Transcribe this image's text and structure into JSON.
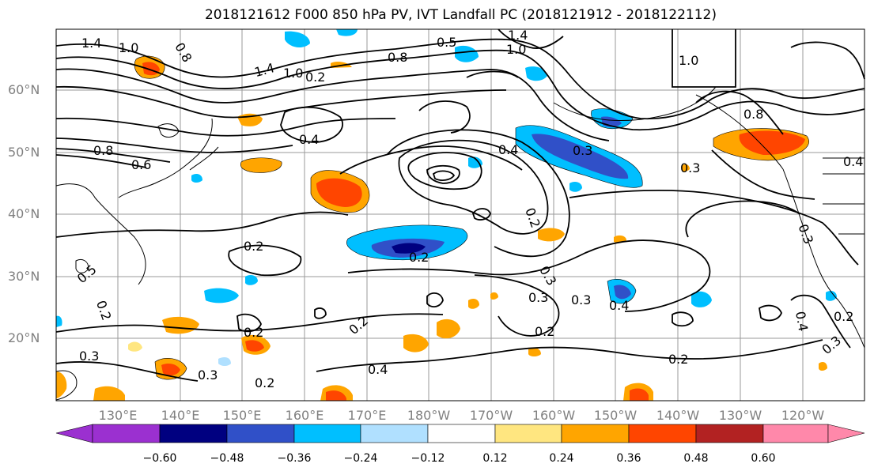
{
  "title": "2018121612 F000 850 hPa PV, IVT Landfall PC (2018121912 - 2018122112)",
  "lat_labels": [
    "60°N",
    "50°N",
    "40°N",
    "30°N",
    "20°N"
  ],
  "lon_labels": [
    "130°E",
    "140°E",
    "150°E",
    "160°E",
    "170°E",
    "180°W",
    "170°W",
    "160°W",
    "150°W",
    "140°W",
    "130°W",
    "120°W"
  ],
  "contour_labels": [
    "1.4",
    "1.0",
    "0.8",
    "1.4",
    "1.0",
    "0.2",
    "0.5",
    "0.8",
    "1.0",
    "1.4",
    "1.0",
    "0.8",
    "0.8",
    "0.6",
    "0.4",
    "0.4",
    "0.3",
    "0.3",
    "0.4",
    "0.2",
    "0.2",
    "0.2",
    "0.5",
    "0.2",
    "0.3",
    "0.3",
    "0.2",
    "0.2",
    "0.3",
    "0.2",
    "0.4",
    "0.3",
    "0.4",
    "0.3",
    "0.2",
    "0.2",
    "0.4",
    "0.2",
    "0.3",
    "0.3"
  ],
  "colorbar": {
    "ticks": [
      "−0.60",
      "−0.48",
      "−0.36",
      "−0.24",
      "−0.12",
      "0.12",
      "0.24",
      "0.36",
      "0.48",
      "0.60"
    ],
    "colors": [
      "#9b30d0",
      "#000080",
      "#3050c8",
      "#00bfff",
      "#b0e0ff",
      "#ffffff",
      "#ffe680",
      "#ffa500",
      "#ff4500",
      "#b22222",
      "#ff88aa"
    ]
  }
}
